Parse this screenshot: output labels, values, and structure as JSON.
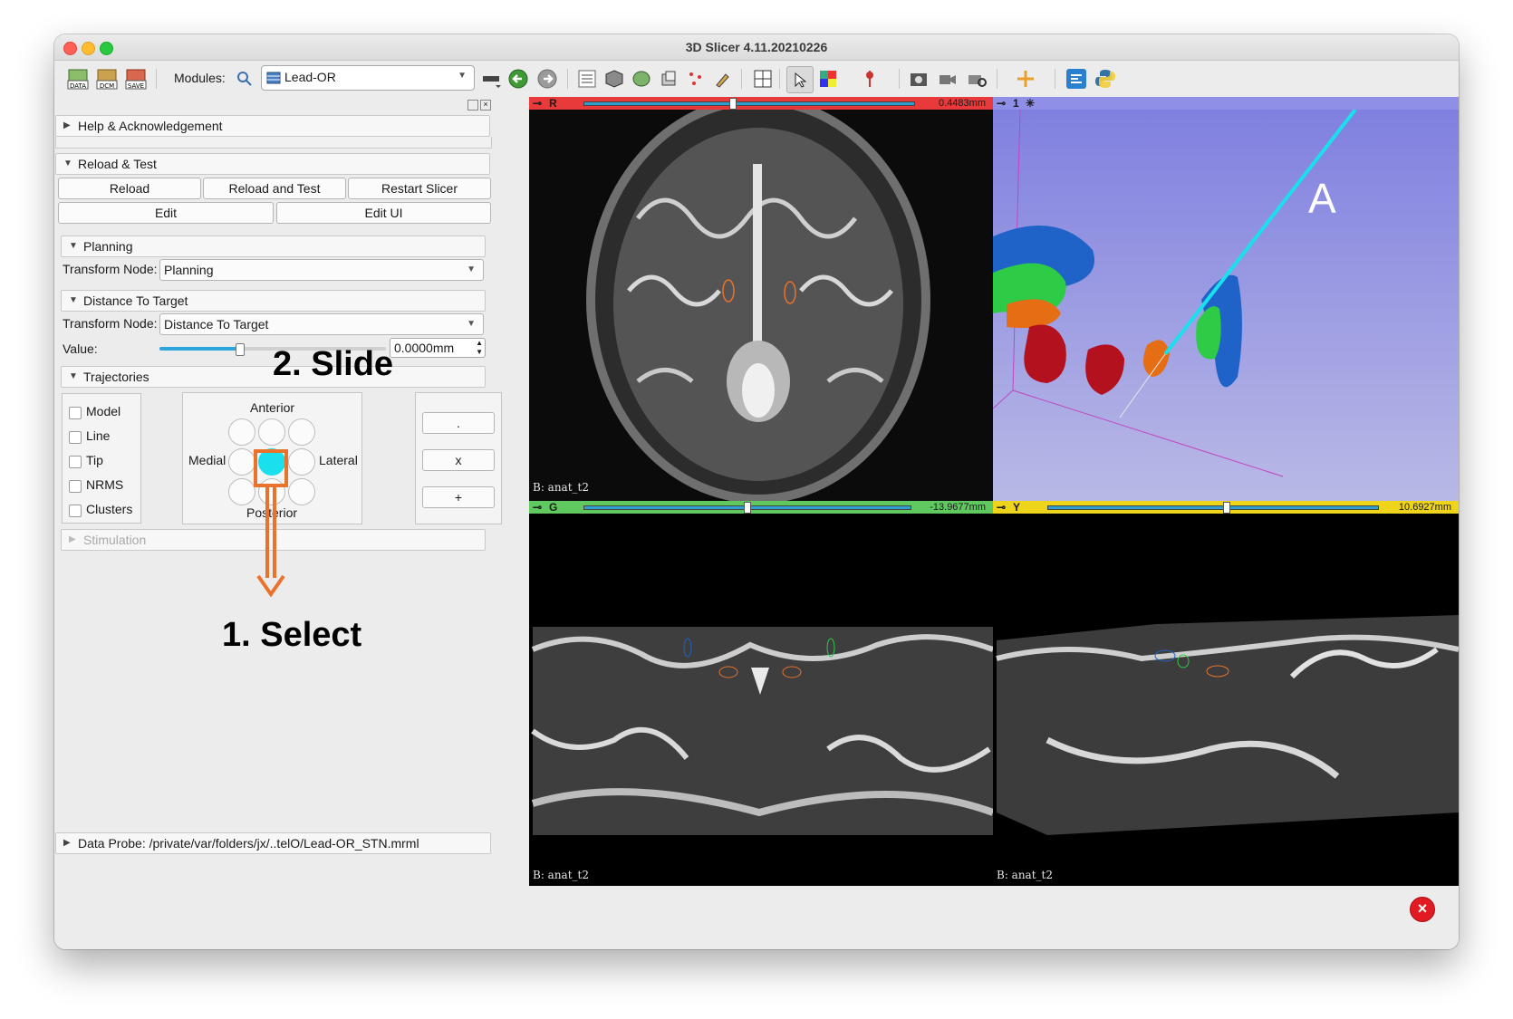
{
  "window": {
    "title": "3D Slicer 4.11.20210226"
  },
  "toolbar": {
    "data_label": "DATA",
    "dcm_label": "DCM",
    "save_label": "SAVE",
    "modules_label": "Modules:",
    "module_selected": "Lead-OR"
  },
  "panel": {
    "help": "Help & Acknowledgement",
    "reload_test": {
      "title": "Reload & Test",
      "reload": "Reload",
      "reload_and_test": "Reload and Test",
      "restart": "Restart Slicer",
      "edit": "Edit",
      "edit_ui": "Edit UI"
    },
    "planning": {
      "title": "Planning",
      "transform_label": "Transform Node:",
      "transform_value": "Planning"
    },
    "distance": {
      "title": "Distance To Target",
      "transform_label": "Transform Node:",
      "transform_value": "Distance To Target",
      "value_label": "Value:",
      "value": "0.0000mm",
      "slider_fraction": 0.35
    },
    "trajectories": {
      "title": "Trajectories",
      "checkboxes": [
        "Model",
        "Line",
        "Tip",
        "NRMS",
        "Clusters"
      ],
      "anterior": "Anterior",
      "posterior": "Posterior",
      "medial": "Medial",
      "lateral": "Lateral",
      "buttons": [
        ".",
        "x",
        "+"
      ]
    },
    "stimulation": "Stimulation",
    "data_probe": "Data Probe: /private/var/folders/jx/..telO/Lead-OR_STN.mrml"
  },
  "views": {
    "red": {
      "label": "R",
      "value": "0.4483mm",
      "fraction": 0.45,
      "footer": "B: anat_t2"
    },
    "threed": {
      "label": "1",
      "overlay": "A"
    },
    "green": {
      "label": "G",
      "value": "-13.9677mm",
      "fraction": 0.5,
      "footer": "B: anat_t2"
    },
    "yellow": {
      "label": "Y",
      "value": "10.6927mm",
      "fraction": 0.54,
      "footer": "B: anat_t2"
    }
  },
  "annotations": {
    "select": "1. Select",
    "slide": "2. Slide"
  },
  "colors": {
    "red_bar": "#e83a3a",
    "green_bar": "#5fc95f",
    "yellow_bar": "#efd41c",
    "threed_bar": "#8f8fe8",
    "cyan": "#19e0ec",
    "orange": "#e9722c"
  }
}
